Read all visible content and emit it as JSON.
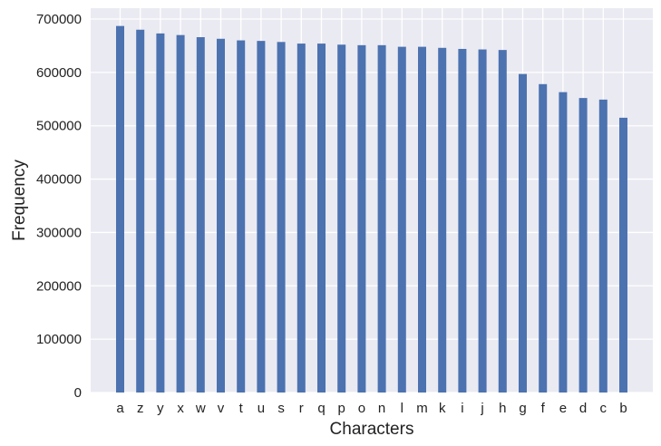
{
  "chart_data": {
    "type": "bar",
    "title": "",
    "xlabel": "Characters",
    "ylabel": "Frequency",
    "categories": [
      "a",
      "z",
      "y",
      "x",
      "w",
      "v",
      "t",
      "u",
      "s",
      "r",
      "q",
      "p",
      "o",
      "n",
      "l",
      "m",
      "k",
      "i",
      "j",
      "h",
      "g",
      "f",
      "e",
      "d",
      "c",
      "b"
    ],
    "values": [
      687000,
      680000,
      673000,
      670000,
      666000,
      663000,
      660000,
      659000,
      657000,
      654000,
      654000,
      652000,
      651000,
      651000,
      648000,
      648000,
      646000,
      644000,
      643000,
      642000,
      597000,
      578000,
      563000,
      552000,
      549000,
      515000
    ],
    "ylim": [
      0,
      700000
    ],
    "yticks": [
      0,
      100000,
      200000,
      300000,
      400000,
      500000,
      600000,
      700000
    ],
    "ytick_labels": [
      "0",
      "100000",
      "200000",
      "300000",
      "400000",
      "500000",
      "600000",
      "700000"
    ],
    "grid": true,
    "legend": "none",
    "colors": {
      "bar": "#4c72b0",
      "plot_background": "#eaeaf2",
      "grid": "#ffffff"
    }
  }
}
